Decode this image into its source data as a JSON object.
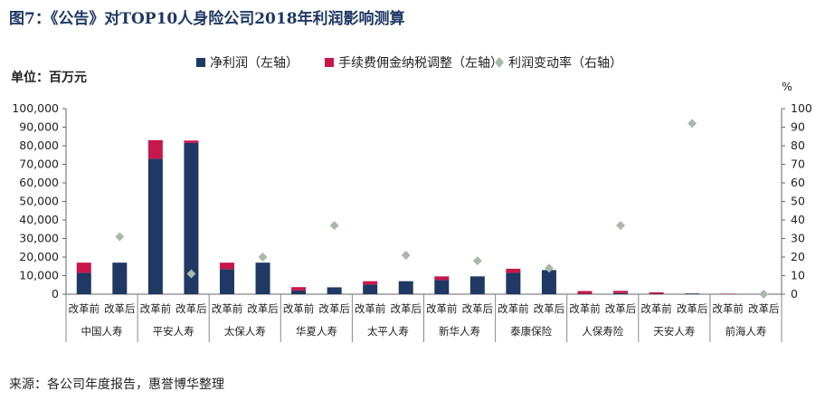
{
  "title": "图7：《公告》对TOP10人身险公司2018年利润影响测算",
  "source": "来源：各公司年度报告，惠誉博华整理",
  "chart_data": {
    "type": "bar",
    "stacked": true,
    "unit_left": "单位：百万元",
    "unit_right": "%",
    "groups": [
      "中国人寿",
      "平安人寿",
      "太保人寿",
      "华夏人寿",
      "太平人寿",
      "新华人寿",
      "泰康保险",
      "人保寿险",
      "天安人寿",
      "前海人寿"
    ],
    "subcategories": [
      "改革前",
      "改革后"
    ],
    "series": [
      {
        "name": "净利润（左轴）",
        "axis": "left",
        "color": "#1f3864",
        "values": [
          11500,
          17000,
          73000,
          81500,
          13500,
          17000,
          2000,
          3700,
          5200,
          7000,
          7600,
          9600,
          11500,
          13000,
          200,
          600,
          200,
          400,
          100,
          100
        ]
      },
      {
        "name": "手续费佣金纳税调整（左轴）",
        "axis": "left",
        "color": "#c8174a",
        "values": [
          5500,
          0,
          10000,
          1300,
          3500,
          0,
          1800,
          0,
          1800,
          0,
          2000,
          0,
          2200,
          0,
          1500,
          1200,
          800,
          0,
          200,
          0
        ]
      },
      {
        "name": "利润变动率（右轴）",
        "axis": "right",
        "type": "scatter",
        "color": "#a9b8a9",
        "values": [
          null,
          31,
          null,
          11,
          null,
          20,
          null,
          37,
          null,
          21,
          null,
          18,
          null,
          14,
          null,
          37,
          null,
          92,
          null,
          0
        ]
      }
    ],
    "ylim_left": [
      0,
      100000
    ],
    "yticks_left": [
      "0",
      "10,000",
      "20,000",
      "30,000",
      "40,000",
      "50,000",
      "60,000",
      "70,000",
      "80,000",
      "90,000",
      "100,000"
    ],
    "ylim_right": [
      0,
      100
    ],
    "yticks_right": [
      "0",
      "10",
      "20",
      "30",
      "40",
      "50",
      "60",
      "70",
      "80",
      "90",
      "100"
    ],
    "legend_position": "top",
    "grid": false
  }
}
